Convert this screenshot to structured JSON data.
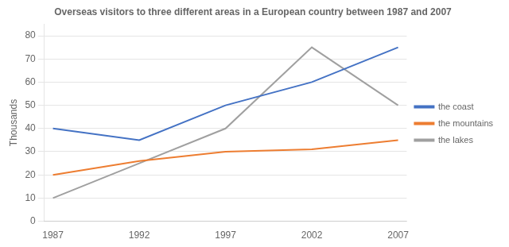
{
  "chart_data": {
    "type": "line",
    "title": "Overseas visitors to three different areas in a European country between 1987 and 2007",
    "y_label": "Thousands",
    "x": [
      1987,
      1992,
      1997,
      2002,
      2007
    ],
    "series": [
      {
        "name": "the coast",
        "color": "#4472C4",
        "values": [
          40,
          35,
          50,
          60,
          75
        ]
      },
      {
        "name": "the mountains",
        "color": "#ED7D31",
        "values": [
          20,
          26,
          30,
          31,
          35
        ]
      },
      {
        "name": "the lakes",
        "color": "#A0A0A0",
        "values": [
          10,
          25,
          40,
          75,
          50
        ]
      }
    ],
    "xlim": [
      1986.5,
      2007.5
    ],
    "xticks": [
      1987,
      1992,
      1997,
      2002,
      2007
    ],
    "ylim": [
      0,
      85
    ],
    "yticks": [
      0,
      10,
      20,
      30,
      40,
      50,
      60,
      70,
      80
    ],
    "grid": "y",
    "legend": "right"
  }
}
